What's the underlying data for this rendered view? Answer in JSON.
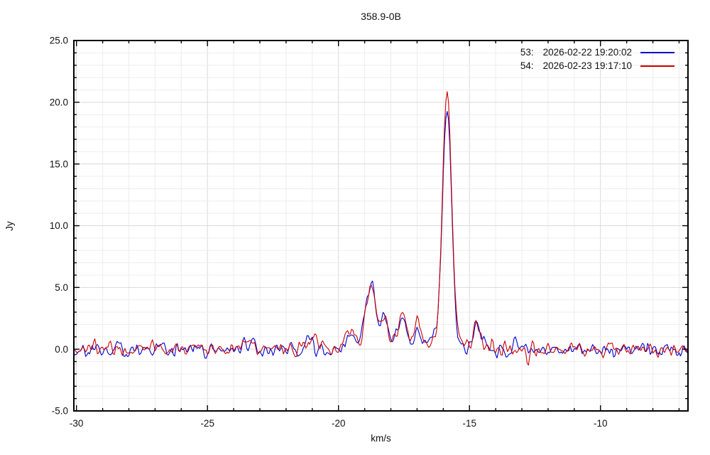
{
  "chart_data": {
    "type": "line",
    "title": "358.9-0B",
    "xlabel": "km/s",
    "ylabel": "Jy",
    "xlim": [
      -30.1,
      -6.66
    ],
    "ylim": [
      -5.0,
      25.0
    ],
    "grid": "minor gridlines every 1 unit both axes, light gray",
    "legend_position": "top-right-inside",
    "x_major_ticks": [
      {
        "value": -30,
        "label": "-30"
      },
      {
        "value": -25,
        "label": "-25"
      },
      {
        "value": -20,
        "label": "-20"
      },
      {
        "value": -15,
        "label": "-15"
      },
      {
        "value": -10,
        "label": "-10"
      }
    ],
    "x_minor_step": 1,
    "y_major_ticks": [
      {
        "value": -5,
        "label": "-5.0"
      },
      {
        "value": 0,
        "label": "0.0"
      },
      {
        "value": 5,
        "label": "5.0"
      },
      {
        "value": 10,
        "label": "10.0"
      },
      {
        "value": 15,
        "label": "15.0"
      },
      {
        "value": 20,
        "label": "20.0"
      },
      {
        "value": 25,
        "label": "25.0"
      }
    ],
    "y_minor_step": 1,
    "channel_step_kms": 0.05,
    "noise_sigma_jy": 0.3,
    "series": [
      {
        "id": "53:",
        "timestamp": "2026-02-22 19:20:02",
        "color": "#0000cc",
        "seed": 53,
        "features_read_from_plot": [
          {
            "vel_kms": -18.7,
            "peak_jy": 6.1
          },
          {
            "vel_kms": -18.25,
            "peak_jy": 3.0
          },
          {
            "vel_kms": -17.55,
            "peak_jy": 2.4
          },
          {
            "vel_kms": -15.86,
            "peak_jy": 20.0
          },
          {
            "vel_kms": -14.73,
            "peak_jy": 1.8
          }
        ],
        "gaussian_components_vel_amp_fwhm": [
          [
            -21.2,
            1.1,
            0.3
          ],
          [
            -19.5,
            0.9,
            0.6
          ],
          [
            -18.95,
            1.5,
            0.3
          ],
          [
            -18.7,
            5.3,
            0.38
          ],
          [
            -18.25,
            2.6,
            0.28
          ],
          [
            -17.95,
            0.5,
            0.3
          ],
          [
            -17.55,
            2.2,
            0.4
          ],
          [
            -16.95,
            1.4,
            0.35
          ],
          [
            -16.4,
            0.7,
            0.25
          ],
          [
            -15.86,
            19.6,
            0.42
          ],
          [
            -14.73,
            1.7,
            0.35
          ],
          [
            -13.95,
            -0.7,
            0.15
          ]
        ]
      },
      {
        "id": "54:",
        "timestamp": "2026-02-23 19:17:10",
        "color": "#cc0000",
        "seed": 54,
        "features_read_from_plot": [
          {
            "vel_kms": -18.7,
            "peak_jy": 5.6
          },
          {
            "vel_kms": -18.25,
            "peak_jy": 3.0
          },
          {
            "vel_kms": -17.55,
            "peak_jy": 2.7
          },
          {
            "vel_kms": -15.86,
            "peak_jy": 20.9
          },
          {
            "vel_kms": -14.73,
            "peak_jy": 1.8
          },
          {
            "vel_kms": -12.75,
            "dip_jy": -1.3
          }
        ],
        "gaussian_components_vel_amp_fwhm": [
          [
            -23.4,
            0.7,
            0.2
          ],
          [
            -21.0,
            0.9,
            0.35
          ],
          [
            -19.6,
            1.3,
            0.6
          ],
          [
            -18.95,
            1.7,
            0.3
          ],
          [
            -18.7,
            4.9,
            0.38
          ],
          [
            -18.25,
            2.6,
            0.28
          ],
          [
            -17.95,
            0.6,
            0.3
          ],
          [
            -17.55,
            2.6,
            0.4
          ],
          [
            -16.95,
            1.9,
            0.35
          ],
          [
            -16.4,
            0.8,
            0.25
          ],
          [
            -15.86,
            20.5,
            0.42
          ],
          [
            -14.73,
            1.7,
            0.35
          ],
          [
            -12.75,
            -1.2,
            0.18
          ]
        ]
      }
    ]
  },
  "style_colors": {
    "plot_border": "#000000",
    "grid_minor": "#ededed",
    "grid_major": "#dadada",
    "text": "#111111",
    "background": "#ffffff"
  }
}
